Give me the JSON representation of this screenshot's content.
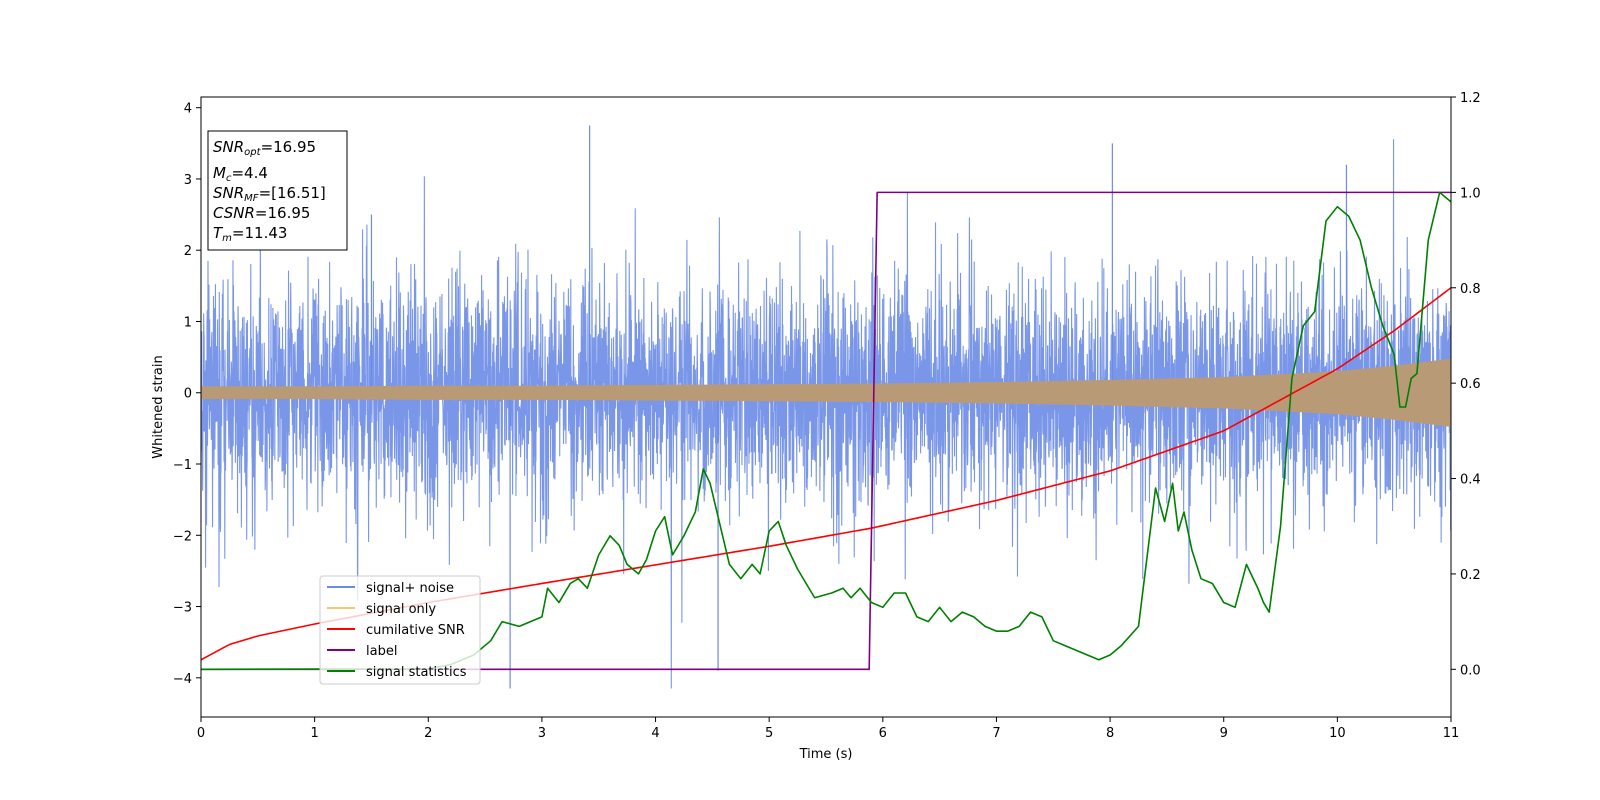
{
  "chart_data": {
    "type": "line",
    "xlabel": "Time (s)",
    "ylabel": "Whitened strain",
    "xlim": [
      0,
      11
    ],
    "ylim_left": [
      -4.55,
      4.15
    ],
    "ylim_right": [
      -0.1,
      1.2
    ],
    "x_ticks": [
      0,
      1,
      2,
      3,
      4,
      5,
      6,
      7,
      8,
      9,
      10,
      11
    ],
    "y_ticks_left": [
      -4,
      -3,
      -2,
      -1,
      0,
      1,
      2,
      3,
      4
    ],
    "y_ticks_right": [
      0.0,
      0.2,
      0.4,
      0.6,
      0.8,
      1.0,
      1.2
    ],
    "legend_position": "lower-left",
    "colors": {
      "noise": "#6a8be6",
      "signal": "#f5c77a",
      "signal_mix": "#b99a77",
      "cumulative": "#ff0000",
      "label": "#800080",
      "statistics": "#008000"
    },
    "annotation": {
      "snr_opt": {
        "base": "SNR",
        "sub": "opt",
        "value": "=16.95"
      },
      "mc": {
        "base": "M",
        "sub": "c",
        "value": "=4.4"
      },
      "snr_mf": {
        "base": "SNR",
        "sub": "MF",
        "value": "=[16.51]"
      },
      "csnr": {
        "base": "CSNR",
        "value": "=16.95"
      },
      "tm": {
        "base": "T",
        "sub": "m",
        "value": "=11.43"
      }
    },
    "series": [
      {
        "name": "signal+ noise",
        "axis": "left",
        "style": "noise",
        "noise_sigma": 1.0,
        "peak_min": -4.15,
        "peak_max": 3.75
      },
      {
        "name": "signal only",
        "axis": "left",
        "style": "envelope",
        "envelope_x": [
          0,
          1,
          2,
          3,
          4,
          5,
          6,
          7,
          8,
          9,
          10,
          10.5,
          11
        ],
        "envelope_amplitude": [
          0.09,
          0.09,
          0.1,
          0.1,
          0.11,
          0.12,
          0.13,
          0.15,
          0.18,
          0.22,
          0.3,
          0.38,
          0.48
        ]
      },
      {
        "name": "cumilative SNR",
        "axis": "right",
        "x": [
          0,
          0.25,
          0.5,
          1,
          2,
          3,
          4,
          5,
          5.9,
          7,
          8,
          9,
          10,
          10.5,
          11
        ],
        "y": [
          0.02,
          0.052,
          0.07,
          0.095,
          0.14,
          0.18,
          0.219,
          0.258,
          0.296,
          0.354,
          0.416,
          0.5,
          0.63,
          0.71,
          0.8
        ]
      },
      {
        "name": "label",
        "axis": "right",
        "x": [
          0,
          5.88,
          5.95,
          11
        ],
        "y": [
          0,
          0,
          1,
          1
        ]
      },
      {
        "name": "signal statistics",
        "axis": "right",
        "x": [
          0,
          2.0,
          2.2,
          2.4,
          2.55,
          2.65,
          2.8,
          2.9,
          3.0,
          3.05,
          3.15,
          3.25,
          3.32,
          3.4,
          3.5,
          3.6,
          3.68,
          3.75,
          3.85,
          3.92,
          4.0,
          4.08,
          4.15,
          4.25,
          4.35,
          4.42,
          4.48,
          4.55,
          4.65,
          4.75,
          4.85,
          4.92,
          5.0,
          5.08,
          5.15,
          5.25,
          5.4,
          5.55,
          5.65,
          5.72,
          5.8,
          5.9,
          6.0,
          6.1,
          6.2,
          6.3,
          6.4,
          6.5,
          6.6,
          6.7,
          6.8,
          6.9,
          7.0,
          7.1,
          7.2,
          7.3,
          7.4,
          7.5,
          7.6,
          7.7,
          7.8,
          7.9,
          8.0,
          8.1,
          8.25,
          8.4,
          8.48,
          8.55,
          8.6,
          8.65,
          8.72,
          8.8,
          8.9,
          9.0,
          9.1,
          9.2,
          9.3,
          9.35,
          9.4,
          9.5,
          9.6,
          9.7,
          9.8,
          9.9,
          10.0,
          10.1,
          10.2,
          10.3,
          10.4,
          10.5,
          10.55,
          10.6,
          10.65,
          10.7,
          10.8,
          10.9,
          11.0
        ],
        "y": [
          0.0,
          0.001,
          0.01,
          0.03,
          0.06,
          0.1,
          0.09,
          0.1,
          0.11,
          0.17,
          0.14,
          0.18,
          0.19,
          0.17,
          0.24,
          0.28,
          0.26,
          0.22,
          0.2,
          0.23,
          0.29,
          0.32,
          0.24,
          0.28,
          0.33,
          0.42,
          0.39,
          0.32,
          0.22,
          0.19,
          0.22,
          0.2,
          0.29,
          0.31,
          0.26,
          0.21,
          0.15,
          0.16,
          0.17,
          0.15,
          0.17,
          0.14,
          0.13,
          0.16,
          0.16,
          0.11,
          0.1,
          0.13,
          0.1,
          0.12,
          0.11,
          0.09,
          0.08,
          0.08,
          0.09,
          0.12,
          0.11,
          0.06,
          0.05,
          0.04,
          0.03,
          0.02,
          0.03,
          0.05,
          0.09,
          0.38,
          0.31,
          0.39,
          0.29,
          0.33,
          0.25,
          0.19,
          0.18,
          0.14,
          0.13,
          0.22,
          0.17,
          0.14,
          0.12,
          0.3,
          0.61,
          0.72,
          0.75,
          0.94,
          0.97,
          0.95,
          0.9,
          0.8,
          0.72,
          0.66,
          0.55,
          0.55,
          0.61,
          0.62,
          0.9,
          1.0,
          0.98
        ]
      }
    ]
  }
}
